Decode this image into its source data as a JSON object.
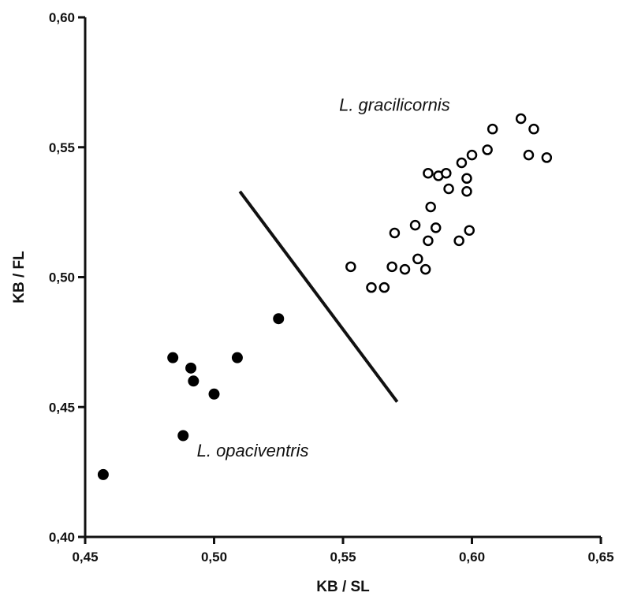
{
  "chart_data": {
    "type": "scatter",
    "title": "",
    "xlabel": "KB / SL",
    "ylabel": "KB / FL",
    "xlim": [
      0.45,
      0.65
    ],
    "ylim": [
      0.4,
      0.6
    ],
    "x_ticks": [
      "0,45",
      "0,50",
      "0,55",
      "0,60",
      "0,65"
    ],
    "y_ticks": [
      "0,40",
      "0,45",
      "0,50",
      "0,55",
      "0,60"
    ],
    "grid": false,
    "legend": "none",
    "series": [
      {
        "name": "L. opaciventris",
        "marker": "filled-circle",
        "color": "#000000",
        "points": [
          [
            0.457,
            0.424
          ],
          [
            0.484,
            0.469
          ],
          [
            0.488,
            0.439
          ],
          [
            0.491,
            0.465
          ],
          [
            0.492,
            0.46
          ],
          [
            0.5,
            0.455
          ],
          [
            0.509,
            0.469
          ],
          [
            0.525,
            0.484
          ]
        ]
      },
      {
        "name": "L. gracilicornis",
        "marker": "open-circle",
        "color": "#000000",
        "points": [
          [
            0.553,
            0.504
          ],
          [
            0.561,
            0.496
          ],
          [
            0.566,
            0.496
          ],
          [
            0.569,
            0.504
          ],
          [
            0.57,
            0.517
          ],
          [
            0.574,
            0.503
          ],
          [
            0.578,
            0.52
          ],
          [
            0.579,
            0.507
          ],
          [
            0.582,
            0.503
          ],
          [
            0.583,
            0.514
          ],
          [
            0.583,
            0.54
          ],
          [
            0.584,
            0.527
          ],
          [
            0.586,
            0.519
          ],
          [
            0.587,
            0.539
          ],
          [
            0.59,
            0.54
          ],
          [
            0.591,
            0.534
          ],
          [
            0.595,
            0.514
          ],
          [
            0.596,
            0.544
          ],
          [
            0.598,
            0.533
          ],
          [
            0.598,
            0.538
          ],
          [
            0.599,
            0.518
          ],
          [
            0.6,
            0.547
          ],
          [
            0.606,
            0.549
          ],
          [
            0.608,
            0.557
          ],
          [
            0.619,
            0.561
          ],
          [
            0.622,
            0.547
          ],
          [
            0.624,
            0.557
          ],
          [
            0.629,
            0.546
          ]
        ]
      }
    ],
    "divider_line": [
      [
        0.51,
        0.533
      ],
      [
        0.571,
        0.452
      ]
    ],
    "annotations": [
      {
        "text": "L. gracilicornis",
        "x": 0.57,
        "y": 0.564
      },
      {
        "text": "L. opaciventris",
        "x": 0.515,
        "y": 0.431
      }
    ]
  }
}
